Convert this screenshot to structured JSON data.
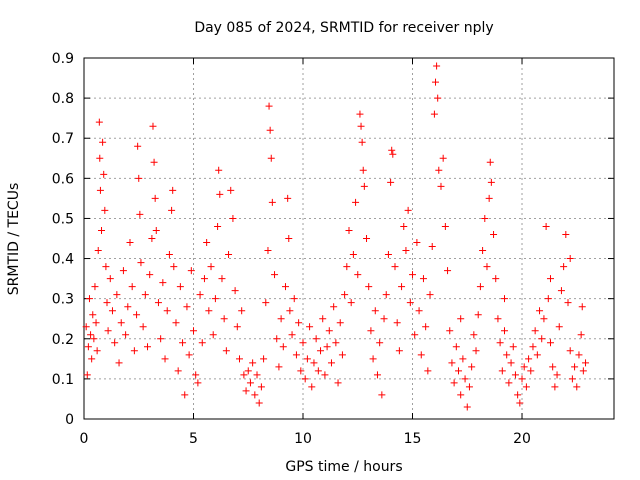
{
  "chart_data": {
    "type": "scatter",
    "title": "Day 085 of 2024, SRMTID for receiver nply",
    "xlabel": "GPS time / hours",
    "ylabel": "SRMTID / TECUs",
    "xlim": [
      0,
      24.2
    ],
    "ylim": [
      0,
      0.9
    ],
    "xticks": [
      0,
      5,
      10,
      15,
      20
    ],
    "yticks": [
      0,
      0.1,
      0.2,
      0.3,
      0.4,
      0.5,
      0.6,
      0.7,
      0.8,
      0.9
    ],
    "xtick_labels": [
      "0",
      "5",
      "10",
      "15",
      "20"
    ],
    "ytick_labels": [
      "0",
      "0.1",
      "0.2",
      "0.3",
      "0.4",
      "0.5",
      "0.6",
      "0.7",
      "0.8",
      "0.9"
    ],
    "grid": true,
    "marker": "+",
    "color": "#ff0000",
    "series": [
      {
        "name": "SRMTID",
        "points": [
          [
            0.1,
            0.23
          ],
          [
            0.15,
            0.11
          ],
          [
            0.2,
            0.18
          ],
          [
            0.25,
            0.3
          ],
          [
            0.3,
            0.21
          ],
          [
            0.35,
            0.15
          ],
          [
            0.4,
            0.26
          ],
          [
            0.45,
            0.2
          ],
          [
            0.5,
            0.33
          ],
          [
            0.55,
            0.24
          ],
          [
            0.6,
            0.17
          ],
          [
            0.65,
            0.42
          ],
          [
            0.7,
            0.74
          ],
          [
            0.72,
            0.65
          ],
          [
            0.75,
            0.57
          ],
          [
            0.8,
            0.47
          ],
          [
            0.85,
            0.69
          ],
          [
            0.9,
            0.61
          ],
          [
            0.95,
            0.52
          ],
          [
            1.0,
            0.38
          ],
          [
            1.05,
            0.29
          ],
          [
            1.1,
            0.22
          ],
          [
            1.2,
            0.35
          ],
          [
            1.3,
            0.27
          ],
          [
            1.4,
            0.19
          ],
          [
            1.5,
            0.31
          ],
          [
            1.6,
            0.14
          ],
          [
            1.7,
            0.24
          ],
          [
            1.8,
            0.37
          ],
          [
            1.9,
            0.21
          ],
          [
            2.0,
            0.28
          ],
          [
            2.1,
            0.44
          ],
          [
            2.2,
            0.33
          ],
          [
            2.3,
            0.17
          ],
          [
            2.4,
            0.26
          ],
          [
            2.45,
            0.68
          ],
          [
            2.5,
            0.6
          ],
          [
            2.55,
            0.51
          ],
          [
            2.6,
            0.39
          ],
          [
            2.7,
            0.23
          ],
          [
            2.8,
            0.31
          ],
          [
            2.9,
            0.18
          ],
          [
            3.0,
            0.36
          ],
          [
            3.1,
            0.45
          ],
          [
            3.15,
            0.73
          ],
          [
            3.2,
            0.64
          ],
          [
            3.25,
            0.55
          ],
          [
            3.3,
            0.47
          ],
          [
            3.4,
            0.29
          ],
          [
            3.5,
            0.2
          ],
          [
            3.6,
            0.34
          ],
          [
            3.7,
            0.15
          ],
          [
            3.8,
            0.27
          ],
          [
            3.9,
            0.41
          ],
          [
            4.0,
            0.52
          ],
          [
            4.05,
            0.57
          ],
          [
            4.1,
            0.38
          ],
          [
            4.2,
            0.24
          ],
          [
            4.3,
            0.12
          ],
          [
            4.4,
            0.33
          ],
          [
            4.5,
            0.19
          ],
          [
            4.6,
            0.06
          ],
          [
            4.7,
            0.28
          ],
          [
            4.8,
            0.16
          ],
          [
            4.9,
            0.37
          ],
          [
            5.0,
            0.22
          ],
          [
            5.1,
            0.11
          ],
          [
            5.2,
            0.09
          ],
          [
            5.3,
            0.31
          ],
          [
            5.4,
            0.19
          ],
          [
            5.5,
            0.35
          ],
          [
            5.6,
            0.44
          ],
          [
            5.7,
            0.27
          ],
          [
            5.8,
            0.38
          ],
          [
            5.9,
            0.21
          ],
          [
            6.0,
            0.3
          ],
          [
            6.1,
            0.48
          ],
          [
            6.15,
            0.62
          ],
          [
            6.2,
            0.56
          ],
          [
            6.3,
            0.35
          ],
          [
            6.4,
            0.25
          ],
          [
            6.5,
            0.17
          ],
          [
            6.6,
            0.41
          ],
          [
            6.7,
            0.57
          ],
          [
            6.8,
            0.5
          ],
          [
            6.9,
            0.32
          ],
          [
            7.0,
            0.23
          ],
          [
            7.1,
            0.15
          ],
          [
            7.2,
            0.27
          ],
          [
            7.3,
            0.11
          ],
          [
            7.4,
            0.07
          ],
          [
            7.5,
            0.12
          ],
          [
            7.6,
            0.09
          ],
          [
            7.7,
            0.14
          ],
          [
            7.8,
            0.06
          ],
          [
            7.9,
            0.11
          ],
          [
            8.0,
            0.04
          ],
          [
            8.1,
            0.08
          ],
          [
            8.2,
            0.15
          ],
          [
            8.3,
            0.29
          ],
          [
            8.4,
            0.42
          ],
          [
            8.45,
            0.78
          ],
          [
            8.5,
            0.72
          ],
          [
            8.55,
            0.65
          ],
          [
            8.6,
            0.54
          ],
          [
            8.7,
            0.36
          ],
          [
            8.8,
            0.2
          ],
          [
            8.9,
            0.13
          ],
          [
            9.0,
            0.25
          ],
          [
            9.1,
            0.18
          ],
          [
            9.2,
            0.33
          ],
          [
            9.3,
            0.55
          ],
          [
            9.35,
            0.45
          ],
          [
            9.4,
            0.27
          ],
          [
            9.5,
            0.21
          ],
          [
            9.6,
            0.3
          ],
          [
            9.7,
            0.16
          ],
          [
            9.8,
            0.24
          ],
          [
            9.9,
            0.12
          ],
          [
            10.0,
            0.19
          ],
          [
            10.1,
            0.1
          ],
          [
            10.2,
            0.15
          ],
          [
            10.3,
            0.23
          ],
          [
            10.4,
            0.08
          ],
          [
            10.5,
            0.14
          ],
          [
            10.6,
            0.2
          ],
          [
            10.7,
            0.12
          ],
          [
            10.8,
            0.17
          ],
          [
            10.9,
            0.25
          ],
          [
            11.0,
            0.11
          ],
          [
            11.1,
            0.18
          ],
          [
            11.2,
            0.22
          ],
          [
            11.3,
            0.14
          ],
          [
            11.4,
            0.28
          ],
          [
            11.5,
            0.19
          ],
          [
            11.6,
            0.09
          ],
          [
            11.7,
            0.24
          ],
          [
            11.8,
            0.16
          ],
          [
            11.9,
            0.31
          ],
          [
            12.0,
            0.38
          ],
          [
            12.1,
            0.47
          ],
          [
            12.2,
            0.29
          ],
          [
            12.3,
            0.41
          ],
          [
            12.4,
            0.54
          ],
          [
            12.5,
            0.36
          ],
          [
            12.6,
            0.76
          ],
          [
            12.65,
            0.73
          ],
          [
            12.7,
            0.69
          ],
          [
            12.75,
            0.62
          ],
          [
            12.8,
            0.58
          ],
          [
            12.9,
            0.45
          ],
          [
            13.0,
            0.33
          ],
          [
            13.1,
            0.22
          ],
          [
            13.2,
            0.15
          ],
          [
            13.3,
            0.27
          ],
          [
            13.4,
            0.11
          ],
          [
            13.5,
            0.19
          ],
          [
            13.6,
            0.06
          ],
          [
            13.7,
            0.25
          ],
          [
            13.8,
            0.31
          ],
          [
            13.9,
            0.41
          ],
          [
            14.0,
            0.59
          ],
          [
            14.05,
            0.67
          ],
          [
            14.1,
            0.66
          ],
          [
            14.2,
            0.38
          ],
          [
            14.3,
            0.24
          ],
          [
            14.4,
            0.17
          ],
          [
            14.5,
            0.33
          ],
          [
            14.6,
            0.48
          ],
          [
            14.7,
            0.42
          ],
          [
            14.8,
            0.52
          ],
          [
            14.9,
            0.29
          ],
          [
            15.0,
            0.36
          ],
          [
            15.1,
            0.21
          ],
          [
            15.2,
            0.44
          ],
          [
            15.3,
            0.27
          ],
          [
            15.4,
            0.16
          ],
          [
            15.5,
            0.35
          ],
          [
            15.6,
            0.23
          ],
          [
            15.7,
            0.12
          ],
          [
            15.8,
            0.31
          ],
          [
            15.9,
            0.43
          ],
          [
            16.0,
            0.76
          ],
          [
            16.05,
            0.84
          ],
          [
            16.1,
            0.88
          ],
          [
            16.15,
            0.8
          ],
          [
            16.2,
            0.62
          ],
          [
            16.3,
            0.58
          ],
          [
            16.4,
            0.65
          ],
          [
            16.5,
            0.48
          ],
          [
            16.6,
            0.37
          ],
          [
            16.7,
            0.22
          ],
          [
            16.8,
            0.14
          ],
          [
            16.9,
            0.09
          ],
          [
            17.0,
            0.18
          ],
          [
            17.1,
            0.12
          ],
          [
            17.2,
            0.06
          ],
          [
            17.3,
            0.15
          ],
          [
            17.4,
            0.1
          ],
          [
            17.5,
            0.03
          ],
          [
            17.6,
            0.08
          ],
          [
            17.7,
            0.13
          ],
          [
            17.8,
            0.21
          ],
          [
            17.9,
            0.17
          ],
          [
            18.0,
            0.26
          ],
          [
            18.1,
            0.33
          ],
          [
            18.2,
            0.42
          ],
          [
            18.3,
            0.5
          ],
          [
            18.4,
            0.38
          ],
          [
            18.5,
            0.55
          ],
          [
            18.55,
            0.64
          ],
          [
            18.6,
            0.59
          ],
          [
            18.7,
            0.46
          ],
          [
            18.8,
            0.35
          ],
          [
            18.9,
            0.25
          ],
          [
            19.0,
            0.19
          ],
          [
            19.1,
            0.12
          ],
          [
            19.2,
            0.22
          ],
          [
            19.3,
            0.16
          ],
          [
            19.4,
            0.09
          ],
          [
            19.5,
            0.14
          ],
          [
            19.6,
            0.18
          ],
          [
            19.7,
            0.11
          ],
          [
            19.8,
            0.06
          ],
          [
            19.9,
            0.04
          ],
          [
            20.0,
            0.1
          ],
          [
            20.1,
            0.13
          ],
          [
            20.2,
            0.08
          ],
          [
            20.3,
            0.15
          ],
          [
            20.4,
            0.12
          ],
          [
            20.5,
            0.18
          ],
          [
            20.6,
            0.22
          ],
          [
            20.7,
            0.16
          ],
          [
            20.8,
            0.27
          ],
          [
            20.9,
            0.2
          ],
          [
            21.0,
            0.25
          ],
          [
            21.1,
            0.48
          ],
          [
            21.2,
            0.3
          ],
          [
            21.3,
            0.19
          ],
          [
            21.4,
            0.13
          ],
          [
            21.5,
            0.08
          ],
          [
            21.6,
            0.11
          ],
          [
            21.7,
            0.23
          ],
          [
            21.8,
            0.32
          ],
          [
            21.9,
            0.38
          ],
          [
            22.0,
            0.46
          ],
          [
            22.1,
            0.29
          ],
          [
            22.2,
            0.17
          ],
          [
            22.3,
            0.1
          ],
          [
            22.4,
            0.13
          ],
          [
            22.5,
            0.08
          ],
          [
            22.6,
            0.16
          ],
          [
            22.7,
            0.21
          ],
          [
            22.8,
            0.12
          ],
          [
            22.9,
            0.14
          ],
          [
            22.75,
            0.28
          ],
          [
            22.2,
            0.4
          ],
          [
            21.3,
            0.35
          ],
          [
            19.2,
            0.3
          ],
          [
            17.2,
            0.25
          ]
        ]
      }
    ]
  }
}
